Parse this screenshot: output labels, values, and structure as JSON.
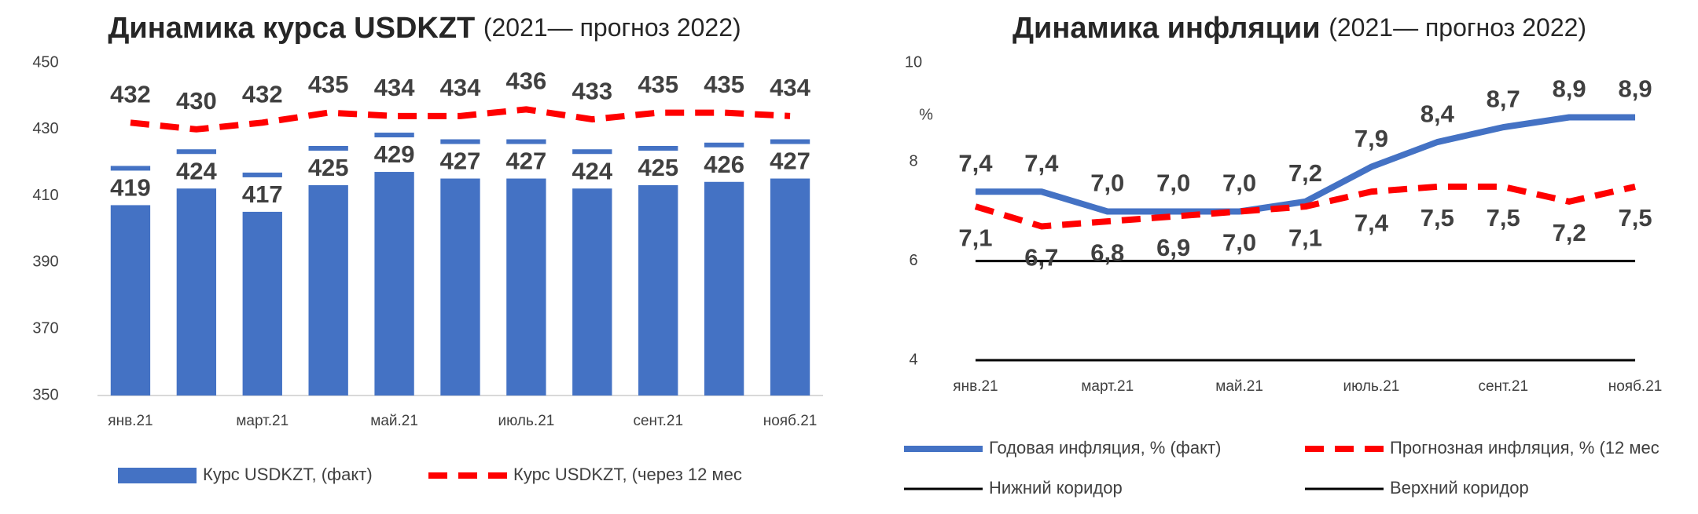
{
  "chart_data": [
    {
      "type": "bar",
      "title": "Динамика курса USDKZT",
      "subtitle": "(2021— прогноз 2022)",
      "categories": [
        "янв.21",
        null,
        "март.21",
        null,
        "май.21",
        null,
        "июль.21",
        null,
        "сент.21",
        null,
        "нояб.21"
      ],
      "series": [
        {
          "name": "Курс USDKZT, (факт)",
          "color": "#4472c4",
          "style": "bar",
          "values": [
            419,
            424,
            417,
            425,
            429,
            427,
            427,
            424,
            425,
            426,
            427
          ]
        },
        {
          "name": "Курс USDKZT, (через 12 мес",
          "color": "#ff0000",
          "style": "dashed",
          "values": [
            432,
            430,
            432,
            435,
            434,
            434,
            436,
            433,
            435,
            435,
            434
          ]
        }
      ],
      "ylim": [
        350,
        450
      ],
      "yticks": [
        350,
        370,
        390,
        410,
        430,
        450
      ],
      "grid": false
    },
    {
      "type": "line",
      "title": "Динамика инфляции",
      "subtitle": "(2021— прогноз 2022)",
      "y_unit": "%",
      "categories": [
        "янв.21",
        null,
        "март.21",
        null,
        "май.21",
        null,
        "июль.21",
        null,
        "сент.21",
        null,
        "нояб.21"
      ],
      "series": [
        {
          "name": "Годовая инфляция, % (факт)",
          "color": "#4472c4",
          "style": "solid",
          "values": [
            7.4,
            7.4,
            7.0,
            7.0,
            7.0,
            7.2,
            7.9,
            8.4,
            8.7,
            8.9,
            8.9
          ],
          "value_labels": [
            "7,4",
            "7,4",
            "7,0",
            "7,0",
            "7,0",
            "7,2",
            "7,9",
            "8,4",
            "8,7",
            "8,9",
            "8,9"
          ]
        },
        {
          "name": "Прогнозная инфляция, % (12 мес",
          "color": "#ff0000",
          "style": "dashed",
          "values": [
            7.1,
            6.7,
            6.8,
            6.9,
            7.0,
            7.1,
            7.4,
            7.5,
            7.5,
            7.2,
            7.5
          ],
          "value_labels": [
            "7,1",
            "6,7",
            "6,8",
            "6,9",
            "7,0",
            "7,1",
            "7,4",
            "7,5",
            "7,5",
            "7,2",
            "7,5"
          ]
        },
        {
          "name": "Нижний коридор",
          "color": "#000000",
          "style": "thin",
          "values": [
            6,
            6,
            6,
            6,
            6,
            6,
            6,
            6,
            6,
            6,
            6
          ]
        },
        {
          "name": "Верхний коридор",
          "color": "#000000",
          "style": "thin",
          "values": [
            4,
            4,
            4,
            4,
            4,
            4,
            4,
            4,
            4,
            4,
            4
          ]
        }
      ],
      "ylim": [
        4,
        10
      ],
      "yticks": [
        4,
        6,
        8,
        10
      ],
      "grid": false
    }
  ]
}
